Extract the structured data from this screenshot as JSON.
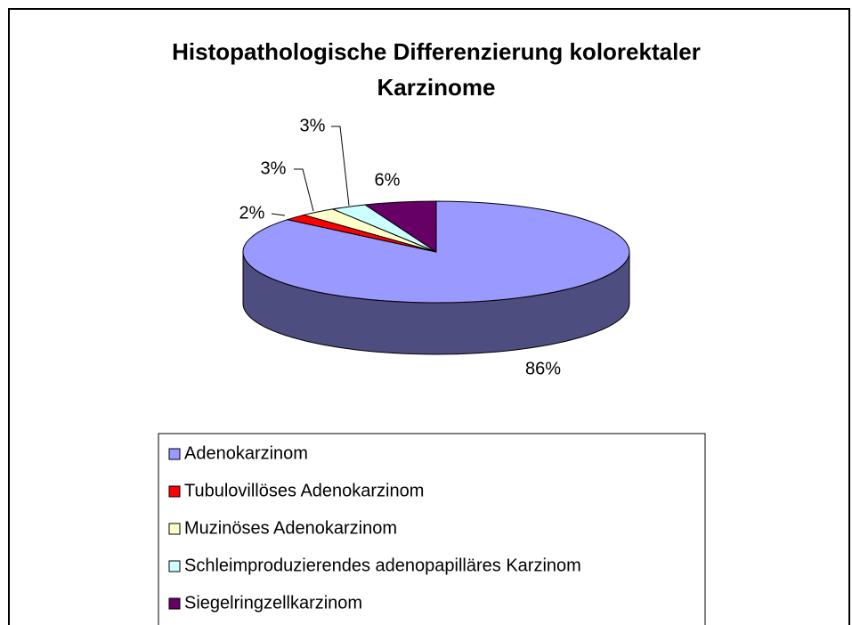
{
  "chart_data": {
    "type": "pie",
    "title": "Histopathologische Differenzierung kolorektaler Karzinome",
    "categories": [
      "Adenokarzinom",
      "Tubulovillöses Adenokarzinom",
      "Muzinöses Adenokarzinom",
      "Schleimproduzierendes adenopapilläres Karzinom",
      "Siegelringzellkarzinom"
    ],
    "values": [
      86,
      2,
      3,
      3,
      6
    ],
    "value_labels": [
      "86%",
      "2%",
      "3%",
      "3%",
      "6%"
    ],
    "colors": [
      "#9999ff",
      "#ff0000",
      "#ffffcc",
      "#ccffff",
      "#660066"
    ],
    "legend": "bottom"
  }
}
